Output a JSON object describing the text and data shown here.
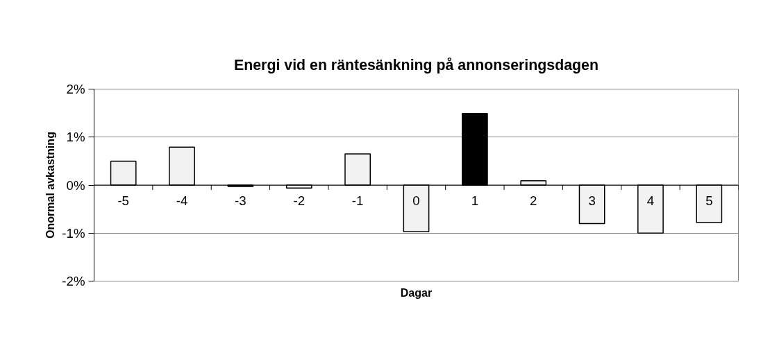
{
  "chart_data": {
    "type": "bar",
    "title": "Energi vid en räntesänkning på annonseringsdagen",
    "xlabel": "Dagar",
    "ylabel": "Onormal avkastning",
    "categories": [
      "-5",
      "-4",
      "-3",
      "-2",
      "-1",
      "0",
      "1",
      "2",
      "3",
      "4",
      "5"
    ],
    "values": [
      0.5,
      0.79,
      -0.03,
      -0.06,
      0.65,
      -0.97,
      1.49,
      0.09,
      -0.8,
      -1.0,
      -0.78
    ],
    "colors": [
      "#f2f2f2",
      "#f2f2f2",
      "#000000",
      "#f2f2f2",
      "#f2f2f2",
      "#f2f2f2",
      "#000000",
      "#f2f2f2",
      "#f2f2f2",
      "#f2f2f2",
      "#f2f2f2"
    ],
    "ylim": [
      -2,
      2
    ],
    "yticks": [
      {
        "value": -2,
        "label": "-2%"
      },
      {
        "value": -1,
        "label": "-1%"
      },
      {
        "value": 0,
        "label": "0%"
      },
      {
        "value": 1,
        "label": "1%"
      },
      {
        "value": 2,
        "label": "2%"
      }
    ],
    "grid": "y"
  }
}
